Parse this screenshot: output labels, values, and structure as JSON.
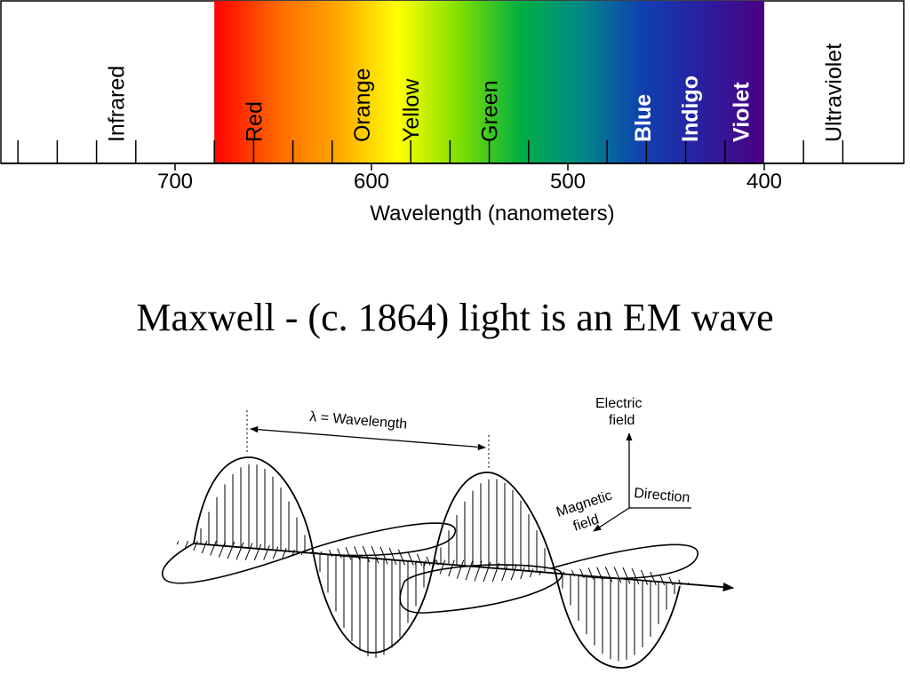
{
  "spectrum": {
    "bands": [
      {
        "label": "Infrared",
        "wavelength": 730,
        "style": "dark"
      },
      {
        "label": "Red",
        "wavelength": 660,
        "style": "dark"
      },
      {
        "label": "Orange",
        "wavelength": 605,
        "style": "dark"
      },
      {
        "label": "Yellow",
        "wavelength": 580,
        "style": "dark"
      },
      {
        "label": "Green",
        "wavelength": 540,
        "style": "dark"
      },
      {
        "label": "Blue",
        "wavelength": 462,
        "style": "light"
      },
      {
        "label": "Indigo",
        "wavelength": 438,
        "style": "light"
      },
      {
        "label": "Violet",
        "wavelength": 412,
        "style": "light"
      },
      {
        "label": "Ultraviolet",
        "wavelength": 365,
        "style": "dark"
      }
    ],
    "visible_range": [
      400,
      680
    ],
    "axis_range": [
      790,
      345
    ],
    "major_ticks": [
      700,
      600,
      500,
      400
    ],
    "minor_tick_step": 20,
    "axis_title": "Wavelength (nanometers)",
    "gradient_colors": [
      "#ff0000",
      "#ff6600",
      "#ffa500",
      "#ffff00",
      "#80e000",
      "#00b040",
      "#008888",
      "#1040b0",
      "#2a1fa0",
      "#4b0082"
    ]
  },
  "title": "Maxwell - (c. 1864) light is an EM wave",
  "wave_diagram": {
    "wavelength_label": "λ = Wavelength",
    "electric_field_label_line1": "Electric",
    "electric_field_label_line2": "field",
    "magnetic_field_label_line1": "Magnetic",
    "magnetic_field_label_line2": "field",
    "direction_label": "Direction"
  }
}
